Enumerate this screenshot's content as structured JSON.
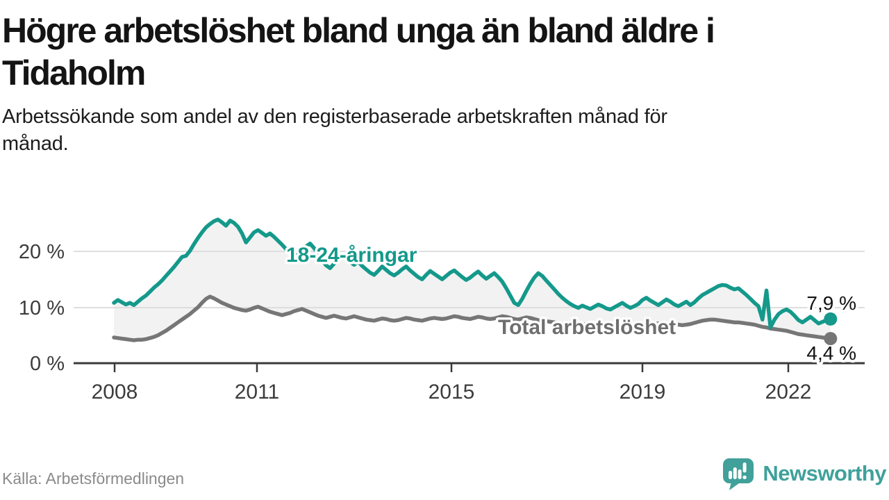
{
  "header": {
    "title_line1": "Högre arbetslöshet bland unga än bland äldre i",
    "title_line2": "Tidaholm",
    "subtitle_line1": "Arbetssökande som andel av den registerbaserade arbetskraften månad för",
    "subtitle_line2": "månad."
  },
  "footer": {
    "source": "Källa: Arbetsförmedlingen",
    "brand": "Newsworthy",
    "brand_color": "#3fa19b"
  },
  "chart_data": {
    "type": "line",
    "title": "Högre arbetslöshet bland unga än bland äldre i Tidaholm",
    "subtitle": "Arbetssökande som andel av den registerbaserade arbetskraften månad för månad.",
    "x_unit": "month",
    "x_start": "2008-01",
    "x_end": "2022-12",
    "ylim": [
      0,
      27
    ],
    "grid": true,
    "band_fill": "#f2f2f2",
    "y_ticks": [
      "20 %",
      "10 %",
      "0 %"
    ],
    "x_ticks": [
      "2008",
      "2011",
      "2015",
      "2019",
      "2022"
    ],
    "series": [
      {
        "name": "18-24-åringar",
        "color": "#14998b",
        "end_label": "7,9 %",
        "values": [
          10.8,
          11.3,
          10.9,
          10.5,
          10.8,
          10.4,
          11.0,
          11.6,
          12.1,
          12.8,
          13.5,
          14.1,
          14.8,
          15.6,
          16.4,
          17.2,
          18.1,
          19.0,
          19.2,
          20.1,
          21.3,
          22.4,
          23.4,
          24.3,
          24.9,
          25.4,
          25.7,
          25.2,
          24.6,
          25.5,
          25.1,
          24.4,
          23.2,
          21.6,
          22.5,
          23.4,
          23.8,
          23.3,
          22.8,
          23.2,
          22.6,
          21.9,
          21.2,
          20.4,
          19.7,
          19.2,
          19.6,
          20.3,
          20.9,
          21.4,
          20.6,
          19.6,
          18.4,
          17.5,
          17.0,
          17.8,
          18.6,
          19.3,
          18.7,
          18.1,
          17.6,
          18.2,
          17.4,
          16.8,
          16.2,
          15.8,
          16.5,
          17.3,
          16.7,
          16.1,
          15.7,
          16.2,
          16.8,
          17.3,
          16.6,
          16.0,
          15.4,
          15.0,
          15.8,
          16.5,
          16.0,
          15.5,
          15.0,
          15.6,
          16.2,
          16.6,
          16.0,
          15.4,
          14.9,
          15.3,
          15.9,
          16.4,
          15.7,
          15.1,
          15.6,
          16.1,
          15.4,
          14.6,
          13.4,
          12.1,
          10.8,
          10.4,
          11.5,
          12.9,
          14.2,
          15.3,
          16.1,
          15.6,
          14.8,
          14.0,
          13.2,
          12.4,
          11.7,
          11.1,
          10.6,
          10.2,
          9.9,
          10.3,
          10.0,
          9.7,
          10.1,
          10.5,
          10.2,
          9.8,
          9.6,
          10.0,
          10.4,
          10.8,
          10.3,
          9.9,
          10.2,
          10.6,
          11.3,
          11.7,
          11.2,
          10.8,
          10.4,
          10.9,
          11.4,
          11.0,
          10.5,
          10.2,
          10.6,
          11.0,
          10.4,
          10.9,
          11.6,
          12.2,
          12.6,
          13.0,
          13.4,
          13.8,
          14.0,
          13.9,
          13.5,
          13.2,
          13.4,
          12.8,
          12.2,
          11.5,
          10.8,
          10.2,
          7.8,
          13.0,
          6.4,
          7.8,
          8.8,
          9.3,
          9.6,
          9.2,
          8.5,
          7.7,
          7.3,
          7.8,
          8.3,
          7.7,
          7.1,
          7.4,
          7.7,
          7.9
        ]
      },
      {
        "name": "Total arbetslöshet",
        "color": "#767676",
        "end_label": "4,4 %",
        "values": [
          4.6,
          4.5,
          4.4,
          4.3,
          4.2,
          4.1,
          4.2,
          4.2,
          4.3,
          4.5,
          4.7,
          5.0,
          5.4,
          5.8,
          6.3,
          6.8,
          7.3,
          7.8,
          8.3,
          8.8,
          9.4,
          10.0,
          10.8,
          11.5,
          11.9,
          11.6,
          11.2,
          10.8,
          10.5,
          10.2,
          9.9,
          9.7,
          9.5,
          9.4,
          9.6,
          9.9,
          10.1,
          9.8,
          9.5,
          9.2,
          9.0,
          8.8,
          8.6,
          8.8,
          9.0,
          9.3,
          9.5,
          9.7,
          9.4,
          9.1,
          8.8,
          8.5,
          8.3,
          8.1,
          8.3,
          8.5,
          8.3,
          8.1,
          8.0,
          8.2,
          8.4,
          8.2,
          8.0,
          7.8,
          7.7,
          7.6,
          7.8,
          8.0,
          7.9,
          7.7,
          7.6,
          7.7,
          7.9,
          8.1,
          8.0,
          7.8,
          7.7,
          7.6,
          7.8,
          8.0,
          8.1,
          8.0,
          7.9,
          8.0,
          8.2,
          8.4,
          8.3,
          8.1,
          8.0,
          7.9,
          8.1,
          8.3,
          8.2,
          8.0,
          7.9,
          8.0,
          8.2,
          8.4,
          8.3,
          8.1,
          7.9,
          7.8,
          8.0,
          8.2,
          8.1,
          7.9,
          7.7,
          7.6,
          7.5,
          7.4,
          7.3,
          7.1,
          7.0,
          6.9,
          7.1,
          7.3,
          7.2,
          7.0,
          6.9,
          6.8,
          6.6,
          6.8,
          6.7,
          6.5,
          6.3,
          6.2,
          6.4,
          6.6,
          6.5,
          6.3,
          6.2,
          6.3,
          6.4,
          6.6,
          6.8,
          7.0,
          7.1,
          6.9,
          6.7,
          6.8,
          7.0,
          6.9,
          6.8,
          6.9,
          7.0,
          7.2,
          7.4,
          7.6,
          7.7,
          7.8,
          7.8,
          7.7,
          7.6,
          7.5,
          7.4,
          7.3,
          7.3,
          7.2,
          7.1,
          7.0,
          6.9,
          6.7,
          6.5,
          6.4,
          6.2,
          6.1,
          6.0,
          5.9,
          5.8,
          5.6,
          5.4,
          5.2,
          5.1,
          5.0,
          4.9,
          4.8,
          4.7,
          4.6,
          4.5,
          4.4
        ]
      }
    ]
  }
}
